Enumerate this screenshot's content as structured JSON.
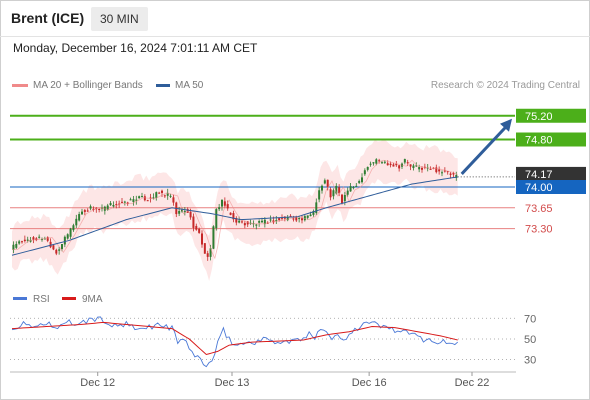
{
  "header": {
    "title": "Brent (ICE)",
    "timeframe": "30 MIN"
  },
  "datetime": "Monday, December 16, 2024 7:01:11 AM CET",
  "legend": [
    {
      "label": "MA 20 + Bollinger Bands",
      "color": "#f08a8a"
    },
    {
      "label": "MA 50",
      "color": "#2f5d9a"
    }
  ],
  "credit": "Research © 2024 Trading Central",
  "colors": {
    "up": "#2e7d32",
    "down": "#c62828",
    "bollinger_fill": "#fde2e2",
    "ma20": "#f08a8a",
    "ma50": "#2f5d9a",
    "resistance": "#4caf1a",
    "support": "#e88080",
    "pivot": "#1565c0",
    "arrow": "#2f5d9a",
    "rsi": "#4a78d6",
    "rsi_ma": "#d81b1b",
    "current": "#333333"
  },
  "chart_data": [
    {
      "type": "line",
      "title": "",
      "y_range": [
        72.4,
        75.6
      ],
      "x_range": [
        0,
        175
      ],
      "current_price": "74.17",
      "pivot_level": {
        "value": 74.0,
        "label": "74.00"
      },
      "resistance_levels": [
        {
          "value": 75.2,
          "label": "75.20"
        },
        {
          "value": 74.8,
          "label": "74.80"
        }
      ],
      "support_levels": [
        {
          "value": 73.65,
          "label": "73.65"
        },
        {
          "value": 73.3,
          "label": "73.30"
        }
      ],
      "forecast_arrow": {
        "from": [
          156,
          74.22
        ],
        "to": [
          175,
          75.2
        ]
      },
      "x_ticks": [
        {
          "x": 30,
          "label": "Dec 12"
        },
        {
          "x": 77,
          "label": "Dec 13"
        },
        {
          "x": 125,
          "label": "Dec 16"
        },
        {
          "x": 161,
          "label": "Dec 22"
        }
      ],
      "price_anchors": [
        [
          0,
          72.95
        ],
        [
          4,
          73.1
        ],
        [
          8,
          73.12
        ],
        [
          12,
          73.15
        ],
        [
          16,
          72.9
        ],
        [
          20,
          73.2
        ],
        [
          24,
          73.55
        ],
        [
          28,
          73.65
        ],
        [
          32,
          73.62
        ],
        [
          36,
          73.72
        ],
        [
          40,
          73.72
        ],
        [
          44,
          73.82
        ],
        [
          48,
          73.8
        ],
        [
          52,
          73.9
        ],
        [
          56,
          73.85
        ],
        [
          58,
          73.55
        ],
        [
          60,
          73.6
        ],
        [
          62,
          73.58
        ],
        [
          64,
          73.35
        ],
        [
          66,
          73.2
        ],
        [
          68,
          72.9
        ],
        [
          69,
          72.8
        ],
        [
          70,
          73.0
        ],
        [
          72,
          73.6
        ],
        [
          74,
          73.78
        ],
        [
          76,
          73.6
        ],
        [
          78,
          73.45
        ],
        [
          82,
          73.38
        ],
        [
          86,
          73.38
        ],
        [
          90,
          73.42
        ],
        [
          94,
          73.45
        ],
        [
          98,
          73.5
        ],
        [
          102,
          73.45
        ],
        [
          104,
          73.5
        ],
        [
          106,
          73.6
        ],
        [
          108,
          73.95
        ],
        [
          110,
          74.1
        ],
        [
          112,
          73.85
        ],
        [
          114,
          74.0
        ],
        [
          116,
          73.75
        ],
        [
          118,
          73.95
        ],
        [
          120,
          74.0
        ],
        [
          122,
          74.1
        ],
        [
          124,
          74.3
        ],
        [
          126,
          74.4
        ],
        [
          128,
          74.45
        ],
        [
          132,
          74.4
        ],
        [
          136,
          74.35
        ],
        [
          138,
          74.45
        ],
        [
          140,
          74.35
        ],
        [
          144,
          74.32
        ],
        [
          148,
          74.3
        ],
        [
          152,
          74.25
        ],
        [
          156,
          74.17
        ]
      ],
      "bollinger_band_width": 0.35,
      "ma50_anchors": [
        [
          0,
          72.85
        ],
        [
          20,
          73.1
        ],
        [
          40,
          73.45
        ],
        [
          56,
          73.65
        ],
        [
          70,
          73.55
        ],
        [
          80,
          73.45
        ],
        [
          100,
          73.5
        ],
        [
          110,
          73.65
        ],
        [
          125,
          73.85
        ],
        [
          140,
          74.05
        ],
        [
          156,
          74.17
        ]
      ]
    },
    {
      "type": "line",
      "title": "",
      "series": [
        {
          "name": "RSI",
          "color": "#4a78d6"
        },
        {
          "name": "9MA",
          "color": "#d81b1b"
        }
      ],
      "y_range": [
        20,
        78
      ],
      "y_ticks": [
        70,
        50,
        30
      ],
      "rsi_anchors": [
        [
          0,
          60
        ],
        [
          4,
          64
        ],
        [
          8,
          62
        ],
        [
          12,
          66
        ],
        [
          16,
          60
        ],
        [
          20,
          66
        ],
        [
          24,
          64
        ],
        [
          28,
          70
        ],
        [
          32,
          68
        ],
        [
          36,
          62
        ],
        [
          40,
          64
        ],
        [
          44,
          58
        ],
        [
          48,
          62
        ],
        [
          52,
          64
        ],
        [
          56,
          60
        ],
        [
          58,
          48
        ],
        [
          60,
          50
        ],
        [
          62,
          40
        ],
        [
          64,
          35
        ],
        [
          66,
          30
        ],
        [
          68,
          24
        ],
        [
          70,
          28
        ],
        [
          72,
          45
        ],
        [
          74,
          58
        ],
        [
          76,
          50
        ],
        [
          78,
          44
        ],
        [
          82,
          46
        ],
        [
          86,
          48
        ],
        [
          90,
          50
        ],
        [
          94,
          46
        ],
        [
          98,
          48
        ],
        [
          102,
          50
        ],
        [
          104,
          54
        ],
        [
          106,
          52
        ],
        [
          108,
          62
        ],
        [
          110,
          58
        ],
        [
          112,
          50
        ],
        [
          114,
          54
        ],
        [
          116,
          48
        ],
        [
          118,
          56
        ],
        [
          120,
          60
        ],
        [
          122,
          62
        ],
        [
          124,
          66
        ],
        [
          128,
          64
        ],
        [
          132,
          60
        ],
        [
          136,
          58
        ],
        [
          140,
          54
        ],
        [
          144,
          50
        ],
        [
          148,
          48
        ],
        [
          152,
          46
        ],
        [
          156,
          46
        ]
      ],
      "ma_anchors": [
        [
          0,
          60
        ],
        [
          12,
          62
        ],
        [
          24,
          64
        ],
        [
          32,
          66
        ],
        [
          40,
          64
        ],
        [
          48,
          62
        ],
        [
          56,
          60
        ],
        [
          62,
          50
        ],
        [
          68,
          35
        ],
        [
          72,
          38
        ],
        [
          76,
          44
        ],
        [
          84,
          47
        ],
        [
          94,
          48
        ],
        [
          102,
          49
        ],
        [
          110,
          54
        ],
        [
          118,
          57
        ],
        [
          126,
          62
        ],
        [
          134,
          61
        ],
        [
          142,
          57
        ],
        [
          150,
          53
        ],
        [
          156,
          49
        ]
      ]
    }
  ]
}
